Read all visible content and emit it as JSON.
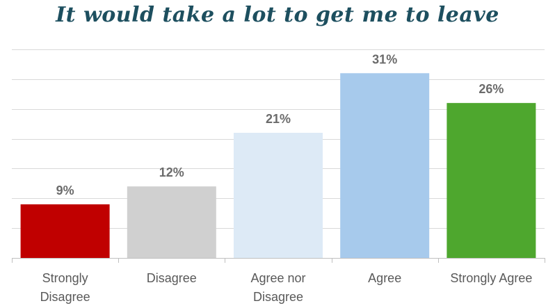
{
  "chart_data": {
    "type": "bar",
    "title": "It would take a lot to get me to leave",
    "categories": [
      [
        "Strongly",
        "Disagree"
      ],
      [
        "Disagree"
      ],
      [
        "Agree nor",
        "Disagree"
      ],
      [
        "Agree"
      ],
      [
        "Strongly Agree"
      ]
    ],
    "values": [
      9,
      12,
      21,
      31,
      26
    ],
    "data_labels": [
      "9%",
      "12%",
      "21%",
      "31%",
      "26%"
    ],
    "colors": [
      "#c00000",
      "#d0d0d0",
      "#ddeaf6",
      "#a7caec",
      "#4ea72e"
    ],
    "ylim": [
      0,
      35
    ],
    "grid": true,
    "legend": "none",
    "gridline_color": "#d9d9d9",
    "axis_color": "#bfbfbf"
  }
}
